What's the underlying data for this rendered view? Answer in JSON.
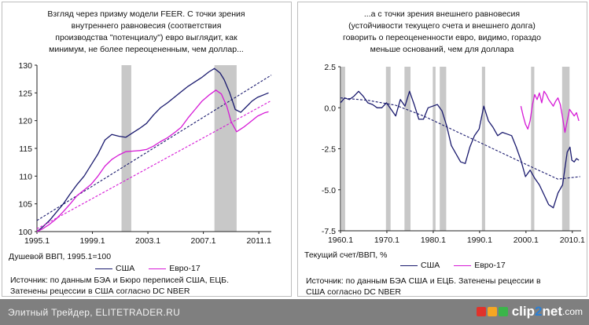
{
  "chart_data": [
    {
      "type": "line",
      "title_lines": [
        "Взгляд через призму модели FEER. С точки зрения",
        "внутреннего равновесия (соответствия",
        "производства \"потенциалу\") евро выглядит, как",
        "минимум, не более переоцененным, чем доллар..."
      ],
      "xlim": [
        1995.1,
        2012.0
      ],
      "ylim": [
        100,
        130
      ],
      "x_ticks": [
        1995.1,
        1999.1,
        2003.1,
        2007.1,
        2011.1
      ],
      "x_tick_labels": [
        "1995.1",
        "1999.1",
        "2003.1",
        "2007.1",
        "2011.1"
      ],
      "y_ticks": [
        100,
        105,
        110,
        115,
        120,
        125,
        130
      ],
      "ylabel": "Душевой ВВП, 1995.1=100",
      "recessions": [
        [
          2001.2,
          2001.9
        ],
        [
          2007.9,
          2009.5
        ]
      ],
      "series": [
        {
          "name": "США",
          "color": "#1a1a6e",
          "style": "solid",
          "x": [
            1995.1,
            1995.5,
            1996,
            1996.5,
            1997,
            1997.5,
            1998,
            1998.5,
            1999,
            1999.5,
            2000,
            2000.5,
            2001,
            2001.5,
            2002,
            2002.5,
            2003,
            2003.5,
            2004,
            2004.5,
            2005,
            2005.5,
            2006,
            2006.5,
            2007,
            2007.5,
            2007.9,
            2008.3,
            2008.6,
            2009.0,
            2009.4,
            2009.8,
            2010.2,
            2010.6,
            2011.0,
            2011.4,
            2011.8
          ],
          "values": [
            100,
            100.8,
            102,
            103.5,
            105,
            106.8,
            108.5,
            110,
            112,
            114,
            116.5,
            117.5,
            117.2,
            117,
            117.8,
            118.6,
            119.5,
            121,
            122.3,
            123.2,
            124.2,
            125.2,
            126.2,
            127,
            127.8,
            128.8,
            129.4,
            128.6,
            127.4,
            125,
            122,
            121.5,
            122.5,
            123.5,
            124.2,
            124.6,
            125
          ]
        },
        {
          "name": "",
          "color": "#1a1a6e",
          "style": "dashed",
          "x": [
            1995.1,
            2012.0
          ],
          "values": [
            102,
            128.2
          ]
        },
        {
          "name": "Евро-17",
          "color": "#d61ad6",
          "style": "solid",
          "x": [
            1995.1,
            1995.5,
            1996,
            1996.5,
            1997,
            1997.5,
            1998,
            1998.5,
            1999,
            1999.5,
            2000,
            2000.5,
            2001,
            2001.5,
            2002,
            2002.5,
            2003,
            2003.5,
            2004,
            2004.5,
            2005,
            2005.5,
            2006,
            2006.5,
            2007,
            2007.5,
            2008,
            2008.4,
            2008.8,
            2009.1,
            2009.5,
            2010,
            2010.5,
            2011,
            2011.5,
            2011.8
          ],
          "values": [
            100,
            100.5,
            101.3,
            102.3,
            103.6,
            105,
            106.5,
            107.5,
            108.5,
            110,
            111.8,
            113,
            113.8,
            114.4,
            114.5,
            114.6,
            114.8,
            115.4,
            116.2,
            116.9,
            117.8,
            118.8,
            120.5,
            122,
            123.5,
            124.6,
            125.5,
            124.8,
            122.5,
            119.8,
            118,
            118.8,
            119.8,
            120.8,
            121.4,
            121.6
          ]
        },
        {
          "name": "",
          "color": "#d61ad6",
          "style": "dashed",
          "x": [
            1995.1,
            2012.0
          ],
          "values": [
            100.5,
            123.6
          ]
        }
      ],
      "legend": {
        "placement": "bottom-center"
      }
    },
    {
      "type": "line",
      "title_lines": [
        "...а с точки зрения внешнего равновесия",
        "(устойчивости текущего счета и внешнего долга)",
        "говорить о переоцененности евро, видимо, гораздо",
        "меньше оснований, чем для доллара"
      ],
      "xlim": [
        1960.1,
        2012.0
      ],
      "ylim": [
        -7.5,
        2.5
      ],
      "x_ticks": [
        1960.1,
        1970.1,
        1980.1,
        1990.1,
        2000.1,
        2010.1
      ],
      "x_tick_labels": [
        "1960.1",
        "1970.1",
        "1980.1",
        "1990.1",
        "2000.1",
        "2010.1"
      ],
      "y_ticks": [
        2.5,
        0.0,
        -2.5,
        -5.0,
        -7.5
      ],
      "y_tick_labels": [
        "2.5",
        "0.0",
        "-2.5",
        "-5.0",
        "-7.5"
      ],
      "ylabel": "Текущий счет/ВВП, %",
      "recessions": [
        [
          1960.3,
          1961.1
        ],
        [
          1969.9,
          1970.9
        ],
        [
          1973.9,
          1975.2
        ],
        [
          1980.0,
          1980.6
        ],
        [
          1981.5,
          1982.9
        ],
        [
          1990.6,
          1991.3
        ],
        [
          2001.2,
          2001.9
        ],
        [
          2007.9,
          2009.5
        ]
      ],
      "series": [
        {
          "name": "США",
          "color": "#1a1a6e",
          "style": "solid",
          "x": [
            1960.1,
            1961,
            1962,
            1963,
            1964,
            1965,
            1966,
            1967,
            1968,
            1969,
            1970,
            1971,
            1972,
            1973,
            1974,
            1975,
            1976,
            1977,
            1978,
            1979,
            1980,
            1981,
            1982,
            1983,
            1984,
            1985,
            1986,
            1987,
            1988,
            1989,
            1990,
            1991,
            1992,
            1993,
            1994,
            1995,
            1996,
            1997,
            1998,
            1999,
            2000,
            2001,
            2002,
            2003,
            2004,
            2005,
            2006,
            2007,
            2008,
            2009,
            2009.6,
            2010,
            2010.5,
            2011,
            2011.5
          ],
          "values": [
            0.3,
            0.6,
            0.5,
            0.7,
            1.0,
            0.7,
            0.3,
            0.2,
            0.0,
            0.0,
            0.3,
            -0.1,
            -0.5,
            0.5,
            0.1,
            1.0,
            0.2,
            -0.7,
            -0.7,
            0.0,
            0.1,
            0.2,
            -0.2,
            -1.1,
            -2.3,
            -2.8,
            -3.3,
            -3.4,
            -2.4,
            -1.7,
            -1.3,
            0.1,
            -0.8,
            -1.2,
            -1.7,
            -1.5,
            -1.6,
            -1.7,
            -2.4,
            -3.2,
            -4.2,
            -3.8,
            -4.3,
            -4.7,
            -5.3,
            -5.9,
            -6.1,
            -5.2,
            -4.7,
            -2.7,
            -2.4,
            -3.2,
            -3.3,
            -3.1,
            -3.2
          ]
        },
        {
          "name": "",
          "color": "#1a1a6e",
          "style": "dashed",
          "x": [
            1960.1,
            1966,
            1972,
            1978,
            1984,
            1990,
            1996,
            2002,
            2007,
            2011.8
          ],
          "values": [
            0.6,
            0.45,
            0.15,
            -0.5,
            -1.3,
            -2.1,
            -2.9,
            -3.7,
            -4.35,
            -4.2
          ]
        },
        {
          "name": "Евро-17",
          "color": "#d61ad6",
          "style": "solid",
          "x": [
            1999.0,
            1999.5,
            2000,
            2000.5,
            2001,
            2001.5,
            2002,
            2002.5,
            2003,
            2003.5,
            2004,
            2004.5,
            2005,
            2005.5,
            2006,
            2006.5,
            2007,
            2007.5,
            2008,
            2008.5,
            2009,
            2009.5,
            2010,
            2010.5,
            2011,
            2011.5
          ],
          "values": [
            0.1,
            -0.5,
            -1.0,
            -1.3,
            -0.8,
            0.2,
            0.8,
            0.5,
            0.9,
            0.3,
            1.0,
            0.8,
            0.5,
            0.3,
            0.1,
            0.4,
            0.6,
            0.2,
            -0.6,
            -1.5,
            -0.8,
            -0.1,
            -0.3,
            -0.5,
            -0.3,
            -0.8
          ]
        }
      ],
      "legend": {
        "placement": "bottom-center"
      }
    }
  ],
  "panels": {
    "left": {
      "title_lines": [
        "Взгляд через призму модели FEER. С точки зрения",
        "внутреннего равновесия (соответствия",
        "производства \"потенциалу\") евро выглядит, как",
        "минимум, не более переоцененным, чем доллар..."
      ],
      "ylabel": "Душевой ВВП, 1995.1=100",
      "legend_us": "США",
      "legend_eu": "Евро-17",
      "source_lines": [
        "Источник: по данным БЭА и Бюро переписей США, ЕЦБ.",
        "Затенены рецессии в США согласно DC NBER"
      ]
    },
    "right": {
      "title_lines": [
        "...а с точки зрения внешнего равновесия",
        "(устойчивости текущего счета и внешнего долга)",
        "говорить о переоцененности евро, видимо, гораздо",
        "меньше оснований, чем для доллара"
      ],
      "ylabel": "Текущий счет/ВВП, %",
      "legend_us": "США",
      "legend_eu": "Евро-17",
      "source_lines": [
        "Источник: по данным БЭА США и ЕЦБ. Затенены рецессии в",
        "США согласно DC NBER"
      ]
    }
  },
  "footer": {
    "text": "Элитный Трейдер, ELITETRADER.RU",
    "logo_part1": "clip",
    "logo_part2": "2",
    "logo_part3": "net",
    "logo_part4": ".com"
  },
  "colors": {
    "us": "#1a1a6e",
    "eu": "#d61ad6",
    "recession": "#c8c8c8",
    "footer_bg": "#7f7f7f"
  }
}
